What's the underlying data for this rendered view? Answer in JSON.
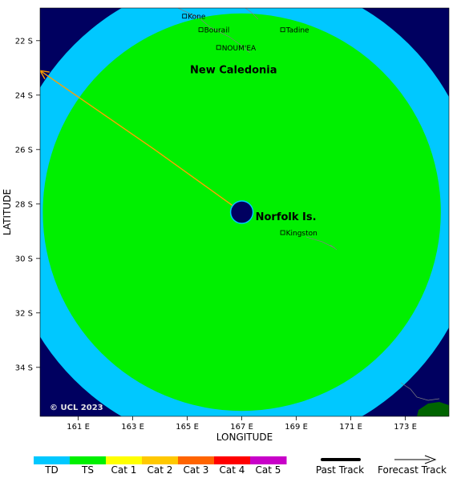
{
  "map": {
    "axes": {
      "xlabel": "LONGITUDE",
      "ylabel": "LATITUDE",
      "x_ticks": [
        "161 E",
        "163 E",
        "165 E",
        "167 E",
        "169 E",
        "171 E",
        "173 E"
      ],
      "y_ticks": [
        "22 S",
        "24 S",
        "26 S",
        "28 S",
        "30 S",
        "32 S",
        "34 S"
      ],
      "lon_range": [
        159.6,
        174.6
      ],
      "lat_range": [
        -35.8,
        -20.8
      ]
    },
    "places": [
      {
        "name": "Kone",
        "lon": 164.9,
        "lat": -21.1
      },
      {
        "name": "Bourail",
        "lon": 165.5,
        "lat": -21.6
      },
      {
        "name": "Tadine",
        "lon": 168.5,
        "lat": -21.6
      },
      {
        "name": "NOUM'EA",
        "lon": 166.15,
        "lat": -22.25
      },
      {
        "name": "Kingston",
        "lon": 168.5,
        "lat": -29.05
      }
    ],
    "regions": [
      {
        "name": "New Caledonia",
        "lon": 165.1,
        "lat": -23.2
      },
      {
        "name": "Norfolk Is.",
        "lon": 167.5,
        "lat": -28.6
      }
    ],
    "copyright": "© UCL 2023",
    "storm_track": {
      "points": [
        {
          "lon": 159.6,
          "lat": -23.1
        },
        {
          "lon": 163.8,
          "lat": -26.0
        },
        {
          "lon": 167.0,
          "lat": -28.3
        }
      ],
      "current_position": {
        "lon": 167.0,
        "lat": -28.3
      }
    },
    "wind_field": {
      "center": {
        "lon": 167.0,
        "lat": -28.3
      },
      "td_radius_deg": 8.7,
      "ts_radius_deg": 7.3
    },
    "colors": {
      "td": "#00c8ff",
      "ts": "#00f000",
      "background_ocean": "#000060",
      "track": "#ffa000",
      "center": "#000060",
      "land": "#006400"
    }
  },
  "legend": {
    "categories": [
      {
        "label": "TD",
        "color": "#00c8ff"
      },
      {
        "label": "TS",
        "color": "#00f000"
      },
      {
        "label": "Cat 1",
        "color": "#ffff00"
      },
      {
        "label": "Cat 2",
        "color": "#ffc800"
      },
      {
        "label": "Cat 3",
        "color": "#ff6400"
      },
      {
        "label": "Cat 4",
        "color": "#ff0000"
      },
      {
        "label": "Cat 5",
        "color": "#c800c8"
      }
    ],
    "past_track_label": "Past Track",
    "forecast_track_label": "Forecast Track"
  }
}
